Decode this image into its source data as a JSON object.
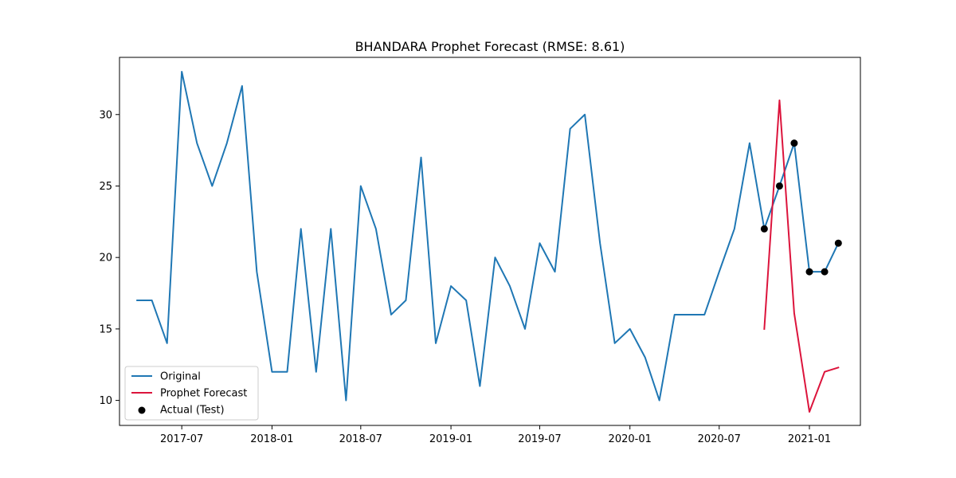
{
  "chart_data": {
    "type": "line",
    "title": "BHANDARA Prophet Forecast (RMSE: 8.61)",
    "xlabel": "",
    "ylabel": "",
    "x_ticks": [
      "2017-07",
      "2018-01",
      "2018-07",
      "2019-01",
      "2019-07",
      "2020-01",
      "2020-07",
      "2021-01"
    ],
    "y_ticks": [
      10,
      15,
      20,
      25,
      30
    ],
    "xlim": [
      "2017-02-24",
      "2021-04-15"
    ],
    "ylim": [
      8.25,
      34.0
    ],
    "grid": false,
    "legend_position": "lower-left",
    "series": [
      {
        "name": "Original",
        "type": "line",
        "color": "#1f77b4",
        "x": [
          "2017-04-01",
          "2017-05-01",
          "2017-06-01",
          "2017-07-01",
          "2017-08-01",
          "2017-09-01",
          "2017-10-01",
          "2017-11-01",
          "2017-12-01",
          "2018-01-01",
          "2018-02-01",
          "2018-03-01",
          "2018-04-01",
          "2018-05-01",
          "2018-06-01",
          "2018-07-01",
          "2018-08-01",
          "2018-09-01",
          "2018-10-01",
          "2018-11-01",
          "2018-12-01",
          "2019-01-01",
          "2019-02-01",
          "2019-03-01",
          "2019-04-01",
          "2019-05-01",
          "2019-06-01",
          "2019-07-01",
          "2019-08-01",
          "2019-09-01",
          "2019-10-01",
          "2019-11-01",
          "2019-12-01",
          "2020-01-01",
          "2020-02-01",
          "2020-03-01",
          "2020-04-01",
          "2020-05-01",
          "2020-06-01",
          "2020-07-01",
          "2020-08-01",
          "2020-09-01",
          "2020-10-01",
          "2020-11-01",
          "2020-12-01",
          "2021-01-01",
          "2021-02-01",
          "2021-03-01"
        ],
        "y": [
          17,
          17,
          14,
          33,
          28,
          25,
          28,
          32,
          19,
          12,
          12,
          22,
          12,
          22,
          10,
          25,
          22,
          16,
          17,
          27,
          14,
          18,
          17,
          11,
          20,
          18,
          15,
          21,
          19,
          29,
          30,
          21,
          14,
          15,
          13,
          10,
          16,
          16,
          16,
          19,
          22,
          28,
          22,
          25,
          28,
          19,
          19,
          21
        ]
      },
      {
        "name": "Prophet Forecast",
        "type": "line",
        "color": "#dc143c",
        "x": [
          "2020-10-01",
          "2020-11-01",
          "2020-12-01",
          "2021-01-01",
          "2021-02-01",
          "2021-03-01"
        ],
        "y": [
          15.0,
          31.0,
          16.1,
          9.2,
          12.0,
          12.3
        ]
      },
      {
        "name": "Actual (Test)",
        "type": "scatter",
        "color": "#000000",
        "x": [
          "2020-10-01",
          "2020-11-01",
          "2020-12-01",
          "2021-01-01",
          "2021-02-01",
          "2021-03-01"
        ],
        "y": [
          22,
          25,
          28,
          19,
          19,
          21
        ]
      }
    ]
  }
}
